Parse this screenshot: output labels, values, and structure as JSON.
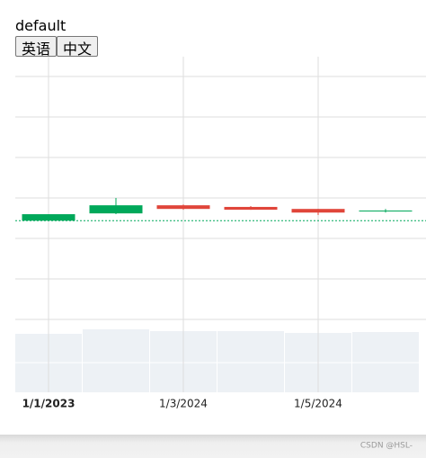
{
  "page": {
    "label": "default",
    "buttons": [
      "英语",
      "中文"
    ],
    "watermark": "CSDN @HSL-"
  },
  "chart_data": {
    "type": "candlestick",
    "x": [
      "1/1/2023",
      null,
      "1/3/2024",
      null,
      "1/5/2024",
      null
    ],
    "open": [
      2.44,
      2.62,
      2.82,
      2.78,
      2.73,
      2.68
    ],
    "high": [
      2.6,
      3.0,
      2.84,
      2.8,
      2.73,
      2.73
    ],
    "low": [
      2.44,
      2.6,
      2.71,
      2.71,
      2.58,
      2.64
    ],
    "close": [
      2.6,
      2.82,
      2.73,
      2.71,
      2.64,
      2.69
    ],
    "volume": [
      65,
      70,
      68,
      68,
      66,
      67
    ],
    "up_color": "#00a85a",
    "down_color": "#e0453a",
    "volume_color": "#edf1f5",
    "ylim": [
      -0.11,
      6.49
    ],
    "yticks": [
      0,
      1,
      2,
      3,
      4,
      5,
      6
    ],
    "volume_lim": [
      0,
      76
    ],
    "volume_ticks": [
      33
    ],
    "price_line": 2.44,
    "grid": true
  }
}
